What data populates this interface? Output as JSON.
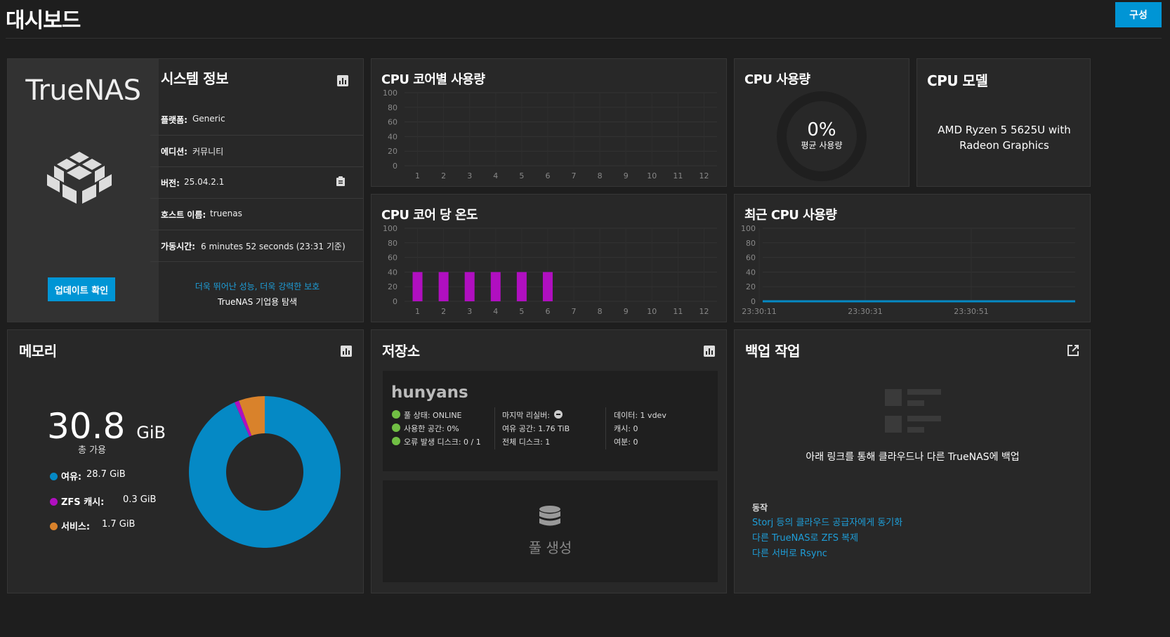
{
  "page": {
    "title": "대시보드",
    "config_button": "구성"
  },
  "system_info": {
    "logo": "TrueNAS",
    "title": "시스템 정보",
    "update_button": "업데이트 확인",
    "rows": [
      {
        "label": "플랫폼:",
        "value": "Generic"
      },
      {
        "label": "에디션:",
        "value": "커뮤니티"
      },
      {
        "label": "버전:",
        "value": "25.04.2.1"
      },
      {
        "label": "호스트 이름:",
        "value": "truenas"
      },
      {
        "label": "가동시간:",
        "value": "6 minutes 52 seconds (23:31 기준)"
      }
    ],
    "promo_link": "더욱 뛰어난 성능, 더욱 강력한 보호",
    "promo_text": "TrueNAS 기업용 탐색"
  },
  "cpu_core_usage": {
    "title": "CPU 코어별 사용량",
    "y_ticks": [
      "100",
      "80",
      "60",
      "40",
      "20",
      "0"
    ],
    "x_ticks": [
      "1",
      "2",
      "3",
      "4",
      "5",
      "6",
      "7",
      "8",
      "9",
      "10",
      "11",
      "12"
    ]
  },
  "cpu_usage": {
    "title": "CPU 사용량",
    "percent": "0%",
    "sub": "평균 사용량"
  },
  "cpu_model": {
    "title": "CPU 모델",
    "line1": "AMD Ryzen 5 5625U with",
    "line2": "Radeon Graphics"
  },
  "cpu_temp": {
    "title": "CPU 코어 당 온도",
    "y_ticks": [
      "100",
      "80",
      "60",
      "40",
      "20",
      "0"
    ],
    "x_ticks": [
      "1",
      "2",
      "3",
      "4",
      "5",
      "6",
      "7",
      "8",
      "9",
      "10",
      "11",
      "12"
    ]
  },
  "recent_cpu": {
    "title": "최근 CPU 사용량",
    "y_ticks": [
      "100",
      "80",
      "60",
      "40",
      "20",
      "0"
    ],
    "x_ticks": [
      "23:30:11",
      "23:30:31",
      "23:30:51"
    ]
  },
  "memory": {
    "title": "메모리",
    "total_value": "30.8",
    "total_unit": "GiB",
    "total_label": "총 가용",
    "legend": [
      {
        "label": "여유:",
        "value": "28.7 GiB",
        "color": "#0589c5"
      },
      {
        "label": "ZFS 캐시:",
        "value": "0.3 GiB",
        "color": "#b00fc0"
      },
      {
        "label": "서비스:",
        "value": "1.7 GiB",
        "color": "#d9822b"
      }
    ]
  },
  "storage": {
    "title": "저장소",
    "pool_name": "hunyans",
    "stats_col1": [
      "풀 상태: ONLINE",
      "사용한 공간: 0%",
      "오류 발생 디스크: 0 / 1"
    ],
    "stats_col2": [
      "마지막 리실버:",
      "여유 공간: 1.76 TiB",
      "전체 디스크: 1"
    ],
    "stats_col3": [
      "데이터: 1 vdev",
      "캐시: 0",
      "여분: 0"
    ],
    "create_pool": "풀 생성"
  },
  "backup": {
    "title": "백업 작업",
    "empty_text": "아래 링크를 통해 클라우드나 다른 TrueNAS에 백업",
    "actions_label": "동작",
    "actions": [
      "Storj 등의 클라우드 공급자에게 동기화",
      "다른 TrueNAS로 ZFS 복제",
      "다른 서버로 Rsync"
    ]
  },
  "chart_data": [
    {
      "type": "bar",
      "title": "CPU 코어별 사용량",
      "categories": [
        "1",
        "2",
        "3",
        "4",
        "5",
        "6",
        "7",
        "8",
        "9",
        "10",
        "11",
        "12"
      ],
      "values": [
        0,
        0,
        0,
        0,
        0,
        0,
        0,
        0,
        0,
        0,
        0,
        0
      ],
      "ylim": [
        0,
        100
      ],
      "color": "#0589c5"
    },
    {
      "type": "bar",
      "title": "CPU 코어 당 온도",
      "categories": [
        "1",
        "2",
        "3",
        "4",
        "5",
        "6",
        "7",
        "8",
        "9",
        "10",
        "11",
        "12"
      ],
      "values": [
        40,
        40,
        40,
        40,
        40,
        40,
        0,
        0,
        0,
        0,
        0,
        0
      ],
      "ylim": [
        0,
        100
      ],
      "color": "#b00fc0"
    },
    {
      "type": "line",
      "title": "최근 CPU 사용량",
      "x": [
        "23:30:11",
        "23:30:31",
        "23:30:51"
      ],
      "values": [
        0,
        0,
        0
      ],
      "ylim": [
        0,
        100
      ],
      "color": "#0589c5"
    },
    {
      "type": "pie",
      "title": "메모리",
      "categories": [
        "여유",
        "ZFS 캐시",
        "서비스"
      ],
      "values": [
        28.7,
        0.3,
        1.7
      ],
      "colors": [
        "#0589c5",
        "#b00fc0",
        "#d9822b"
      ]
    }
  ]
}
